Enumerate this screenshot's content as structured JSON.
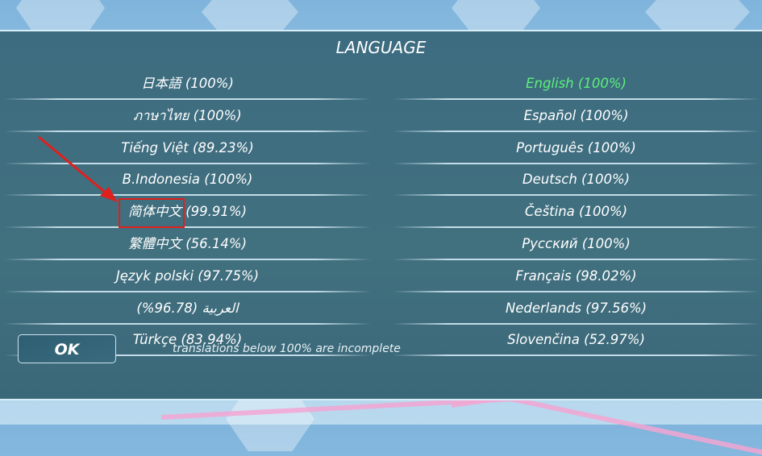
{
  "title": "LANGUAGE",
  "left_column": [
    {
      "label": "日本語 (100%)"
    },
    {
      "label": "ภาษาไทย (100%)"
    },
    {
      "label": "Tiếng Việt (89.23%)"
    },
    {
      "label": "B.Indonesia (100%)"
    },
    {
      "label": "简体中文 (99.91%)"
    },
    {
      "label": "繁體中文 (56.14%)"
    },
    {
      "label": "Język polski (97.75%)"
    },
    {
      "label": "العربية (96.78%)"
    },
    {
      "label": "Türkçe (83.94%)"
    }
  ],
  "right_column": [
    {
      "label": "English (100%)",
      "selected": true
    },
    {
      "label": "Español (100%)"
    },
    {
      "label": "Português (100%)"
    },
    {
      "label": "Deutsch (100%)"
    },
    {
      "label": "Čeština (100%)"
    },
    {
      "label": "Русский (100%)"
    },
    {
      "label": "Français (98.02%)"
    },
    {
      "label": "Nederlands (97.56%)"
    },
    {
      "label": "Slovenčina (52.97%)"
    }
  ],
  "ok_label": "OK",
  "note": "translations below 100% are incomplete",
  "colors": {
    "selected": "#5df07a",
    "panel": "#3f6e81",
    "annotation": "#e0201c"
  }
}
